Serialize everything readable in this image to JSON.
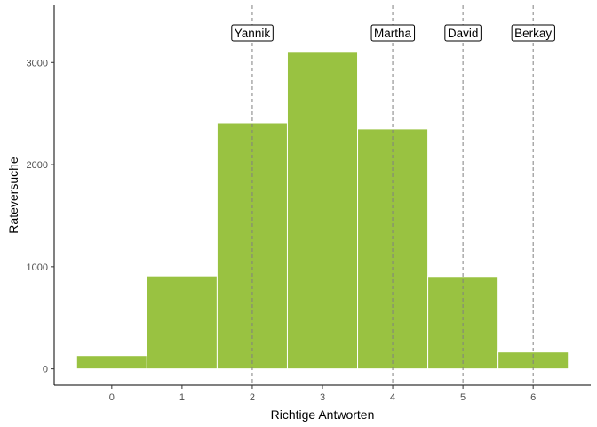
{
  "chart_data": {
    "type": "bar",
    "title": "",
    "xlabel": "Richtige Antworten",
    "ylabel": "Rateversuche",
    "x": [
      0,
      1,
      2,
      3,
      4,
      5,
      6
    ],
    "x_tick_labels": [
      "0",
      "1",
      "2",
      "3",
      "4",
      "5",
      "6"
    ],
    "values": [
      130,
      910,
      2410,
      3100,
      2350,
      905,
      165
    ],
    "xlim": [
      -0.82,
      6.82
    ],
    "ylim": [
      -160,
      3560
    ],
    "y_ticks": [
      0,
      1000,
      2000,
      3000
    ],
    "y_tick_labels": [
      "0",
      "1000",
      "2000",
      "3000"
    ],
    "grid": false,
    "legend": "none",
    "bar_color": "#99c241",
    "bar_edge_color": "#ffffff",
    "reference_lines": [
      {
        "x": 2,
        "label": "Yannik"
      },
      {
        "x": 4,
        "label": "Martha"
      },
      {
        "x": 5,
        "label": "David"
      },
      {
        "x": 6,
        "label": "Berkay"
      }
    ],
    "reference_label_y": 3290,
    "reference_line_color": "#808080"
  }
}
